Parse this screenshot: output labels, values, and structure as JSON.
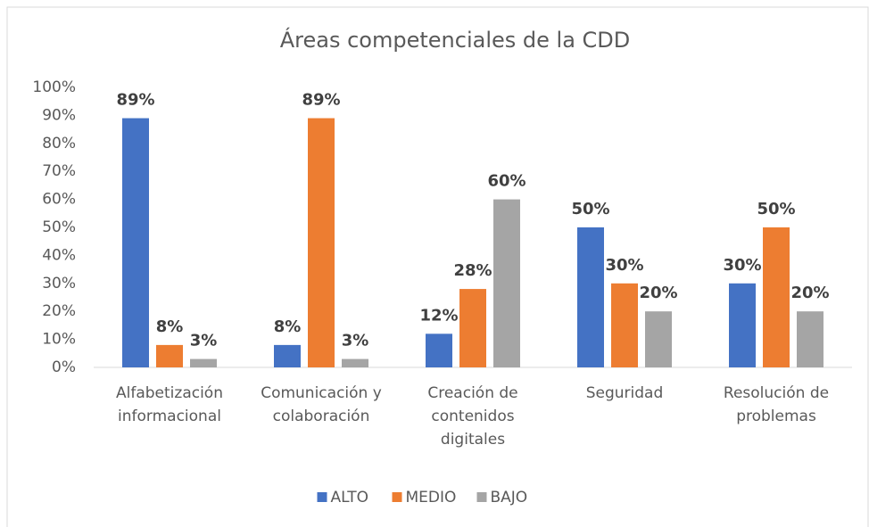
{
  "chart_data": {
    "type": "bar",
    "title": "Áreas competenciales de la CDD",
    "categories": [
      "Alfabetización\ninformacional",
      "Comunicación y\ncolaboración",
      "Creación de\ncontenidos\ndigitales",
      "Seguridad",
      "Resolución de\nproblemas"
    ],
    "series": [
      {
        "name": "ALTO",
        "color": "#4472c4",
        "values": [
          89,
          8,
          12,
          50,
          30
        ],
        "value_labels": [
          "89%",
          "8%",
          "12%",
          "50%",
          "30%"
        ]
      },
      {
        "name": "MEDIO",
        "color": "#ed7d31",
        "values": [
          8,
          89,
          28,
          30,
          50
        ],
        "value_labels": [
          "8%",
          "89%",
          "28%",
          "30%",
          "50%"
        ]
      },
      {
        "name": "BAJO",
        "color": "#a5a5a5",
        "values": [
          3,
          3,
          60,
          20,
          20
        ],
        "value_labels": [
          "3%",
          "3%",
          "60%",
          "20%",
          "20%"
        ]
      }
    ],
    "ylim": [
      0,
      100
    ],
    "yticks": [
      {
        "value": 0,
        "label": "0%"
      },
      {
        "value": 10,
        "label": "10%"
      },
      {
        "value": 20,
        "label": "20%"
      },
      {
        "value": 30,
        "label": "30%"
      },
      {
        "value": 40,
        "label": "40%"
      },
      {
        "value": 50,
        "label": "50%"
      },
      {
        "value": 60,
        "label": "60%"
      },
      {
        "value": 70,
        "label": "70%"
      },
      {
        "value": 80,
        "label": "80%"
      },
      {
        "value": 90,
        "label": "90%"
      },
      {
        "value": 100,
        "label": "100%"
      }
    ],
    "grid": false,
    "legend": "bottom"
  }
}
